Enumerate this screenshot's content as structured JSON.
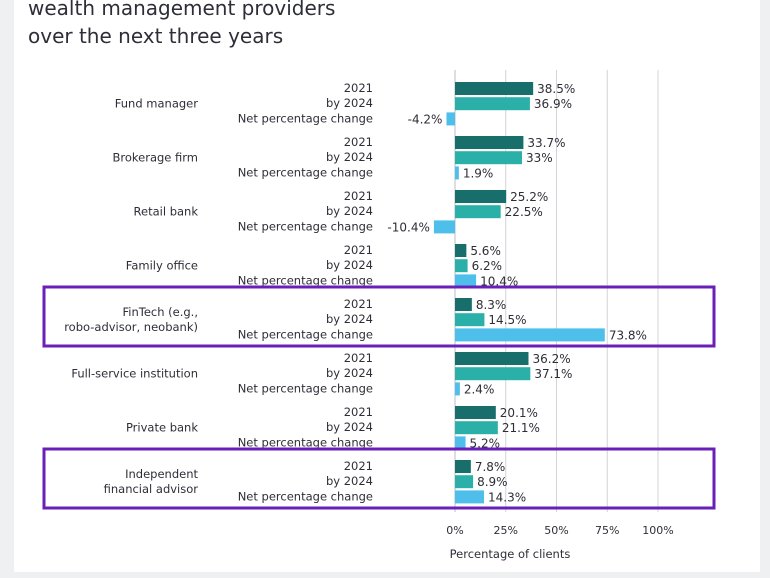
{
  "title_lines": [
    "wealth management providers",
    "over the next three years"
  ],
  "colors": {
    "2021": "#186e6a",
    "by 2024": "#2ab0a8",
    "Net percentage change": "#4ebeea",
    "highlight": "#6a1fb8",
    "grid": "#d4d4d8"
  },
  "chart_data": {
    "type": "bar",
    "orientation": "horizontal",
    "categories": [
      "Fund manager",
      "Brokerage firm",
      "Retail bank",
      "Family office",
      "FinTech (e.g.,\nrobo-advisor, neobank)",
      "Full-service institution",
      "Private bank",
      "Independent\nfinancial advisor"
    ],
    "series": [
      {
        "name": "2021",
        "values": [
          38.5,
          33.7,
          25.2,
          5.6,
          8.3,
          36.2,
          20.1,
          7.8
        ]
      },
      {
        "name": "by 2024",
        "values": [
          36.9,
          33,
          22.5,
          6.2,
          14.5,
          37.1,
          21.1,
          8.9
        ]
      },
      {
        "name": "Net percentage change",
        "values": [
          -4.2,
          1.9,
          -10.4,
          10.4,
          73.8,
          2.4,
          5.2,
          14.3
        ]
      }
    ],
    "value_labels": [
      [
        "38.5%",
        "36.9%",
        "-4.2%"
      ],
      [
        "33.7%",
        "33%",
        "1.9%"
      ],
      [
        "25.2%",
        "22.5%",
        "-10.4%"
      ],
      [
        "5.6%",
        "6.2%",
        "10.4%"
      ],
      [
        "8.3%",
        "14.5%",
        "73.8%"
      ],
      [
        "36.2%",
        "37.1%",
        "2.4%"
      ],
      [
        "20.1%",
        "21.1%",
        "5.2%"
      ],
      [
        "7.8%",
        "8.9%",
        "14.3%"
      ]
    ],
    "x_ticks": [
      0,
      25,
      50,
      75,
      100
    ],
    "x_tick_labels": [
      "0%",
      "25%",
      "50%",
      "75%",
      "100%"
    ],
    "xlabel": "Percentage of clients",
    "xlim": [
      0,
      100
    ],
    "highlighted_categories": [
      "FinTech (e.g.,\nrobo-advisor, neobank)",
      "Independent\nfinancial advisor"
    ],
    "grid": true
  }
}
